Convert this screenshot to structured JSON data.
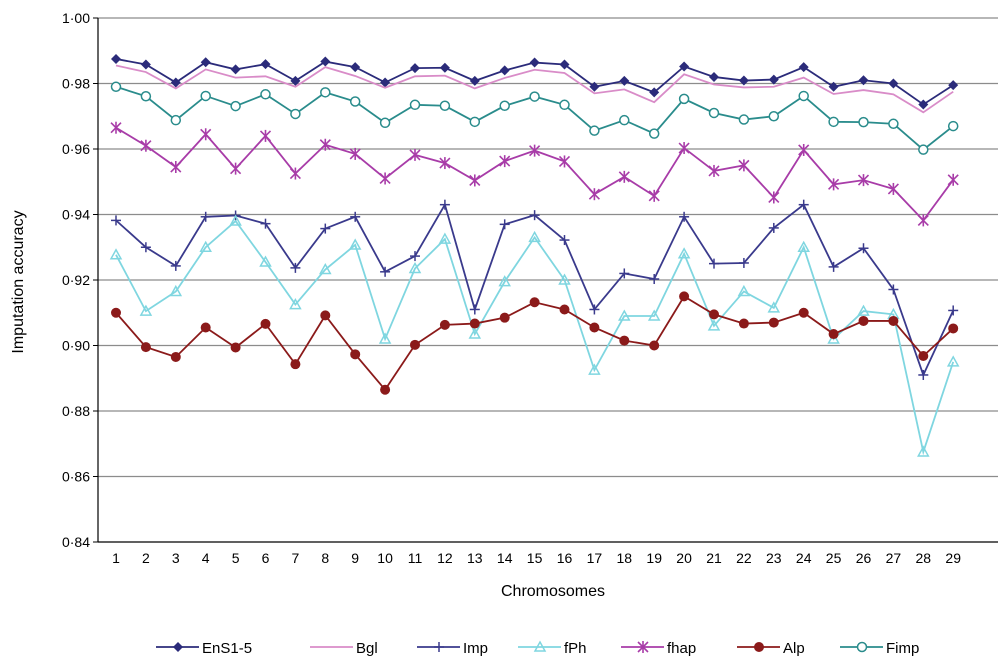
{
  "chart_data": {
    "type": "line",
    "xlabel": "Chromosomes",
    "ylabel": "Imputation accuracy",
    "ylim": [
      0.84,
      1.0
    ],
    "ytick_step": 0.02,
    "ytick_labels": [
      "0·84",
      "0·86",
      "0·88",
      "0·90",
      "0·92",
      "0·94",
      "0·96",
      "0·98",
      "1·00"
    ],
    "grid": true,
    "legend_position": "bottom",
    "x": [
      "1",
      "2",
      "3",
      "4",
      "5",
      "6",
      "7",
      "8",
      "9",
      "10",
      "11",
      "12",
      "13",
      "14",
      "15",
      "16",
      "17",
      "18",
      "19",
      "20",
      "21",
      "22",
      "23",
      "24",
      "25",
      "26",
      "27",
      "28",
      "29"
    ],
    "series": [
      {
        "name": "EnS1-5",
        "color": "#2b2b7a",
        "marker": "diamond",
        "values": [
          0.9875,
          0.9858,
          0.9803,
          0.9865,
          0.9843,
          0.9859,
          0.9808,
          0.9867,
          0.985,
          0.9803,
          0.9847,
          0.9848,
          0.9808,
          0.984,
          0.9864,
          0.9858,
          0.979,
          0.9808,
          0.9773,
          0.9852,
          0.982,
          0.9809,
          0.9812,
          0.985,
          0.979,
          0.981,
          0.98,
          0.9736,
          0.9795
        ]
      },
      {
        "name": "Bgl",
        "color": "#d98cc8",
        "marker": "none",
        "values": [
          0.9855,
          0.9835,
          0.9785,
          0.9843,
          0.9818,
          0.9822,
          0.979,
          0.985,
          0.9823,
          0.9787,
          0.9822,
          0.9824,
          0.9785,
          0.9817,
          0.9842,
          0.9832,
          0.977,
          0.9782,
          0.9743,
          0.9828,
          0.9797,
          0.9788,
          0.979,
          0.9818,
          0.9768,
          0.978,
          0.9767,
          0.9712,
          0.9775
        ]
      },
      {
        "name": "Imp",
        "color": "#3a3a8c",
        "marker": "plus",
        "values": [
          0.9382,
          0.93,
          0.9243,
          0.9393,
          0.9397,
          0.9372,
          0.9237,
          0.9357,
          0.9393,
          0.9225,
          0.9273,
          0.943,
          0.911,
          0.937,
          0.9398,
          0.9322,
          0.911,
          0.922,
          0.9203,
          0.9393,
          0.925,
          0.9252,
          0.9359,
          0.943,
          0.924,
          0.9297,
          0.9171,
          0.891,
          0.9107
        ]
      },
      {
        "name": "fPh",
        "color": "#7fd6e0",
        "marker": "triangle",
        "values": [
          0.9277,
          0.9105,
          0.9165,
          0.93,
          0.938,
          0.9255,
          0.9125,
          0.9232,
          0.9307,
          0.902,
          0.9235,
          0.9325,
          0.9035,
          0.9195,
          0.933,
          0.92,
          0.8925,
          0.909,
          0.909,
          0.928,
          0.906,
          0.9165,
          0.9115,
          0.93,
          0.902,
          0.9105,
          0.9095,
          0.8675,
          0.895
        ]
      },
      {
        "name": "fhap",
        "color": "#a83ca8",
        "marker": "star",
        "values": [
          0.9665,
          0.961,
          0.9545,
          0.9645,
          0.954,
          0.964,
          0.9525,
          0.9613,
          0.9585,
          0.951,
          0.9582,
          0.9557,
          0.9504,
          0.9563,
          0.9595,
          0.9562,
          0.9462,
          0.9515,
          0.9457,
          0.9603,
          0.9533,
          0.955,
          0.9452,
          0.9597,
          0.9492,
          0.9505,
          0.9478,
          0.9382,
          0.9506
        ]
      },
      {
        "name": "Alp",
        "color": "#8b1a1a",
        "marker": "circle",
        "values": [
          0.91,
          0.8995,
          0.8965,
          0.9055,
          0.8994,
          0.9066,
          0.8943,
          0.9092,
          0.8973,
          0.8865,
          0.9002,
          0.9063,
          0.9067,
          0.9085,
          0.9132,
          0.911,
          0.9055,
          0.9015,
          0.9,
          0.915,
          0.9095,
          0.9067,
          0.907,
          0.91,
          0.9035,
          0.9075,
          0.9075,
          0.8968,
          0.9052
        ]
      },
      {
        "name": "Fimp",
        "color": "#2a8c8c",
        "marker": "ocircle",
        "values": [
          0.979,
          0.9761,
          0.9688,
          0.9762,
          0.9731,
          0.9767,
          0.9707,
          0.9773,
          0.9745,
          0.968,
          0.9735,
          0.9732,
          0.9683,
          0.9732,
          0.976,
          0.9735,
          0.9656,
          0.9688,
          0.9647,
          0.9753,
          0.971,
          0.969,
          0.97,
          0.9762,
          0.9683,
          0.9682,
          0.9677,
          0.9598,
          0.967
        ]
      }
    ]
  }
}
